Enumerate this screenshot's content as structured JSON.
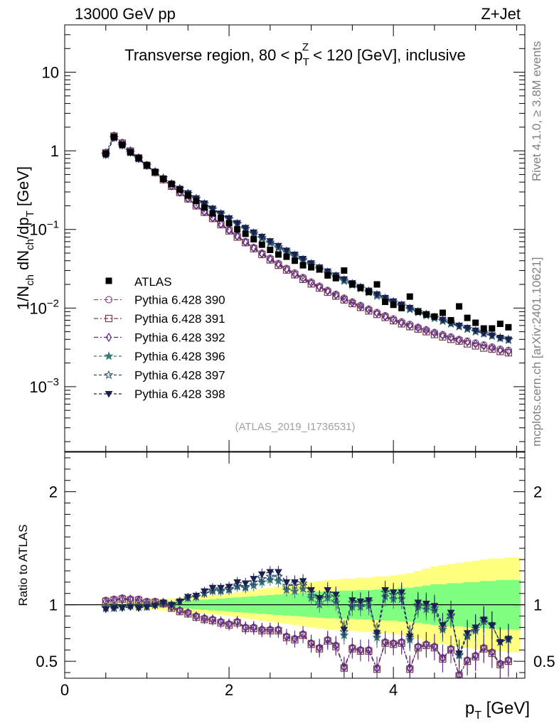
{
  "header": {
    "energy": "13000 GeV pp",
    "process": "Z+Jet"
  },
  "side_labels": {
    "rivet": "Rivet 4.1.0, ≥ 3.8M events",
    "mcplots": "mcplots.cern.ch [arXiv:2401.10621]"
  },
  "colors": {
    "atlas": "#000000",
    "band_outer": "#ffff80",
    "band_inner": "#80ff80",
    "ratio_line": "#000000"
  },
  "chart_data": [
    {
      "type": "scatter",
      "name": "main",
      "title": "Transverse region, 80 < p_T^Z < 120 [GeV], inclusive",
      "title_parts": {
        "pre": "Transverse region, 80 < p",
        "sub": "T",
        "sup": "Z",
        "post": " < 120 [GeV], inclusive"
      },
      "ylabel": "1/N_ch dN_ch/dp_T [GeV]",
      "ylabel_parts": [
        "1/N",
        "ch",
        " dN",
        "ch",
        "/dp",
        "T",
        " [GeV]"
      ],
      "yscale": "log",
      "ylim": [
        0.00015,
        40
      ],
      "xlim": [
        0,
        5.6
      ],
      "yticks": [
        {
          "value": 10,
          "mant": "10",
          "exp": ""
        },
        {
          "value": 1,
          "mant": "1",
          "exp": ""
        },
        {
          "value": 0.1,
          "mant": "10",
          "exp": "−1"
        },
        {
          "value": 0.01,
          "mant": "10",
          "exp": "−2"
        },
        {
          "value": 0.001,
          "mant": "10",
          "exp": "−3"
        }
      ],
      "watermark": "(ATLAS_2019_I1736531)",
      "x": [
        0.5,
        0.6,
        0.7,
        0.8,
        0.9,
        1.0,
        1.1,
        1.2,
        1.3,
        1.4,
        1.5,
        1.6,
        1.7,
        1.8,
        1.9,
        2.0,
        2.1,
        2.2,
        2.3,
        2.4,
        2.5,
        2.6,
        2.7,
        2.8,
        2.9,
        3.0,
        3.1,
        3.2,
        3.3,
        3.4,
        3.5,
        3.6,
        3.7,
        3.8,
        3.9,
        4.0,
        4.1,
        4.2,
        4.3,
        4.4,
        4.5,
        4.6,
        4.7,
        4.8,
        4.9,
        5.0,
        5.1,
        5.2,
        5.3,
        5.4
      ],
      "atlas": [
        0.92,
        1.5,
        1.2,
        0.96,
        0.81,
        0.66,
        0.54,
        0.44,
        0.38,
        0.32,
        0.27,
        0.23,
        0.19,
        0.16,
        0.14,
        0.12,
        0.1,
        0.088,
        0.075,
        0.064,
        0.055,
        0.048,
        0.045,
        0.04,
        0.035,
        0.033,
        0.031,
        0.026,
        0.024,
        0.03,
        0.02,
        0.018,
        0.016,
        0.02,
        0.012,
        0.011,
        0.01,
        0.014,
        0.009,
        0.0083,
        0.0078,
        0.0087,
        0.007,
        0.0105,
        0.0075,
        0.0065,
        0.0055,
        0.0055,
        0.0063,
        0.0057
      ],
      "series": [
        {
          "name": "Pythia 6.428 390",
          "label": "Pythia 6.428 390",
          "color": "#8a4f8a",
          "marker": "circle",
          "dash": "6,3,2,3",
          "values": [
            0.95,
            1.56,
            1.27,
            1.0,
            0.82,
            0.66,
            0.54,
            0.44,
            0.36,
            0.3,
            0.25,
            0.205,
            0.17,
            0.142,
            0.118,
            0.099,
            0.083,
            0.07,
            0.059,
            0.05,
            0.043,
            0.037,
            0.032,
            0.028,
            0.0245,
            0.0215,
            0.019,
            0.0168,
            0.015,
            0.0134,
            0.012,
            0.0108,
            0.0097,
            0.0088,
            0.008,
            0.0073,
            0.0067,
            0.0062,
            0.0057,
            0.0053,
            0.0049,
            0.0046,
            0.0043,
            0.004,
            0.0038,
            0.0036,
            0.0034,
            0.0032,
            0.003,
            0.0029
          ]
        },
        {
          "name": "Pythia 6.428 391",
          "label": "Pythia 6.428 391",
          "color": "#7a3a4a",
          "marker": "square",
          "dash": "6,3,2,3",
          "values": [
            0.94,
            1.54,
            1.25,
            0.99,
            0.81,
            0.65,
            0.53,
            0.43,
            0.355,
            0.295,
            0.245,
            0.2,
            0.165,
            0.138,
            0.115,
            0.096,
            0.08,
            0.068,
            0.057,
            0.048,
            0.041,
            0.035,
            0.0305,
            0.0265,
            0.0232,
            0.0203,
            0.018,
            0.0159,
            0.0142,
            0.0127,
            0.0114,
            0.0102,
            0.0092,
            0.0083,
            0.0076,
            0.0069,
            0.0063,
            0.0058,
            0.0054,
            0.005,
            0.0046,
            0.0043,
            0.004,
            0.0038,
            0.0035,
            0.0033,
            0.0031,
            0.003,
            0.0028,
            0.0027
          ]
        },
        {
          "name": "Pythia 6.428 392",
          "label": "Pythia 6.428 392",
          "color": "#5a2a8a",
          "marker": "diamond",
          "dash": "6,3,2,3",
          "values": [
            0.94,
            1.55,
            1.26,
            1.0,
            0.815,
            0.655,
            0.535,
            0.435,
            0.358,
            0.298,
            0.248,
            0.203,
            0.168,
            0.14,
            0.117,
            0.098,
            0.082,
            0.069,
            0.058,
            0.049,
            0.042,
            0.036,
            0.031,
            0.027,
            0.0238,
            0.0209,
            0.0185,
            0.0164,
            0.0146,
            0.013,
            0.0117,
            0.0105,
            0.0095,
            0.0086,
            0.0078,
            0.0071,
            0.0065,
            0.006,
            0.0056,
            0.0052,
            0.0048,
            0.0045,
            0.0042,
            0.0039,
            0.0037,
            0.0035,
            0.0033,
            0.0031,
            0.0029,
            0.0028
          ]
        },
        {
          "name": "Pythia 6.428 396",
          "label": "Pythia 6.428 396",
          "color": "#3a7a7a",
          "marker": "star",
          "dash": "4,3",
          "values": [
            0.9,
            1.47,
            1.18,
            0.95,
            0.79,
            0.65,
            0.54,
            0.45,
            0.38,
            0.33,
            0.285,
            0.245,
            0.21,
            0.18,
            0.156,
            0.135,
            0.117,
            0.101,
            0.088,
            0.077,
            0.067,
            0.058,
            0.051,
            0.045,
            0.04,
            0.035,
            0.031,
            0.0275,
            0.0245,
            0.022,
            0.0196,
            0.0176,
            0.0158,
            0.0142,
            0.0128,
            0.0116,
            0.0105,
            0.0096,
            0.0088,
            0.008,
            0.0074,
            0.0068,
            0.0063,
            0.0058,
            0.0054,
            0.005,
            0.0047,
            0.0044,
            0.0041,
            0.0039
          ]
        },
        {
          "name": "Pythia 6.428 397",
          "label": "Pythia 6.428 397",
          "color": "#2a4a6a",
          "marker": "star-open",
          "dash": "4,3",
          "values": [
            0.89,
            1.46,
            1.17,
            0.95,
            0.79,
            0.65,
            0.54,
            0.45,
            0.38,
            0.33,
            0.287,
            0.247,
            0.212,
            0.182,
            0.158,
            0.137,
            0.119,
            0.103,
            0.09,
            0.079,
            0.069,
            0.06,
            0.053,
            0.047,
            0.0415,
            0.0366,
            0.0324,
            0.0287,
            0.0256,
            0.0228,
            0.0204,
            0.0183,
            0.0164,
            0.0148,
            0.0133,
            0.012,
            0.0109,
            0.0099,
            0.009,
            0.0083,
            0.0076,
            0.007,
            0.0064,
            0.0059,
            0.0055,
            0.0051,
            0.0048,
            0.0045,
            0.0042,
            0.004
          ]
        },
        {
          "name": "Pythia 6.428 398",
          "label": "Pythia 6.428 398",
          "color": "#1a2050",
          "marker": "triangle-down",
          "dash": "4,3",
          "values": [
            0.88,
            1.45,
            1.16,
            0.94,
            0.78,
            0.645,
            0.535,
            0.448,
            0.38,
            0.33,
            0.29,
            0.25,
            0.215,
            0.185,
            0.16,
            0.139,
            0.121,
            0.105,
            0.092,
            0.081,
            0.071,
            0.062,
            0.054,
            0.048,
            0.0423,
            0.0373,
            0.033,
            0.0293,
            0.0261,
            0.0233,
            0.0208,
            0.0186,
            0.0167,
            0.015,
            0.0135,
            0.0122,
            0.0111,
            0.0101,
            0.0092,
            0.0084,
            0.0077,
            0.0071,
            0.0065,
            0.006,
            0.0056,
            0.0052,
            0.0048,
            0.0045,
            0.0042,
            0.004
          ]
        }
      ],
      "legend": {
        "placement": "center-left",
        "atlas_label": "ATLAS"
      }
    },
    {
      "type": "scatter",
      "name": "ratio",
      "ylabel": "Ratio to ATLAS",
      "xlabel": "p_T [GeV]",
      "xlabel_parts": [
        "p",
        "T",
        " [GeV]"
      ],
      "xlim": [
        0,
        5.6
      ],
      "ylim": [
        0.35,
        2.35
      ],
      "yticks": [
        0.5,
        1,
        2
      ],
      "ytick_labels": [
        "0.5",
        "1",
        "2"
      ],
      "xticks": [
        0,
        2,
        4
      ],
      "xtick_labels": [
        "0",
        "2",
        "4"
      ],
      "band_x": [
        0.45,
        0.55,
        0.65,
        0.75,
        0.85,
        0.95,
        1.05,
        1.15,
        1.25,
        1.35,
        1.45,
        1.55,
        1.65,
        1.75,
        1.85,
        1.95,
        2.05,
        2.15,
        2.25,
        2.35,
        2.45,
        2.55,
        2.65,
        2.75,
        2.85,
        2.95,
        3.05,
        3.15,
        3.25,
        3.35,
        3.45,
        3.55,
        3.65,
        3.75,
        3.85,
        3.95,
        4.05,
        4.15,
        4.25,
        4.35,
        4.45,
        4.55,
        4.65,
        4.75,
        4.85,
        4.95,
        5.05,
        5.15,
        5.25,
        5.35,
        5.45,
        5.55
      ],
      "band_outer": [
        0.02,
        0.02,
        0.025,
        0.03,
        0.035,
        0.04,
        0.045,
        0.05,
        0.055,
        0.06,
        0.07,
        0.075,
        0.08,
        0.085,
        0.09,
        0.1,
        0.11,
        0.12,
        0.13,
        0.14,
        0.15,
        0.16,
        0.17,
        0.18,
        0.19,
        0.2,
        0.21,
        0.22,
        0.22,
        0.23,
        0.23,
        0.24,
        0.24,
        0.25,
        0.25,
        0.26,
        0.27,
        0.28,
        0.3,
        0.32,
        0.34,
        0.35,
        0.36,
        0.37,
        0.38,
        0.39,
        0.4,
        0.41,
        0.41,
        0.42,
        0.42
      ],
      "band_inner": [
        0.01,
        0.01,
        0.012,
        0.015,
        0.018,
        0.02,
        0.022,
        0.025,
        0.028,
        0.03,
        0.035,
        0.04,
        0.045,
        0.05,
        0.055,
        0.06,
        0.065,
        0.07,
        0.075,
        0.08,
        0.085,
        0.09,
        0.095,
        0.1,
        0.105,
        0.11,
        0.115,
        0.12,
        0.12,
        0.125,
        0.125,
        0.13,
        0.13,
        0.135,
        0.14,
        0.14,
        0.15,
        0.15,
        0.16,
        0.17,
        0.18,
        0.18,
        0.19,
        0.19,
        0.2,
        0.2,
        0.21,
        0.21,
        0.22,
        0.22,
        0.22
      ],
      "ratio_series": [
        [
          1.04,
          1.05,
          1.06,
          1.05,
          1.05,
          1.03,
          1.03,
          1.02,
          0.98,
          0.95,
          0.93,
          0.9,
          0.88,
          0.87,
          0.85,
          0.83,
          0.85,
          0.8,
          0.8,
          0.78,
          0.78,
          0.78,
          0.72,
          0.7,
          0.74,
          0.66,
          0.62,
          0.69,
          0.64,
          0.45,
          0.62,
          0.6,
          0.6,
          0.44,
          0.67,
          0.66,
          0.67,
          0.44,
          0.63,
          0.65,
          0.63,
          0.53,
          0.61,
          0.38,
          0.51,
          0.55,
          0.62,
          0.58,
          0.48,
          0.51
        ],
        [
          1.03,
          1.04,
          1.05,
          1.04,
          1.04,
          1.02,
          1.02,
          1.01,
          0.97,
          0.94,
          0.92,
          0.89,
          0.87,
          0.86,
          0.84,
          0.82,
          0.84,
          0.79,
          0.79,
          0.77,
          0.77,
          0.77,
          0.71,
          0.69,
          0.73,
          0.65,
          0.61,
          0.68,
          0.63,
          0.44,
          0.61,
          0.59,
          0.59,
          0.43,
          0.66,
          0.65,
          0.66,
          0.43,
          0.62,
          0.64,
          0.62,
          0.52,
          0.6,
          0.37,
          0.5,
          0.54,
          0.61,
          0.57,
          0.47,
          0.5
        ],
        [
          1.03,
          1.04,
          1.05,
          1.05,
          1.04,
          1.02,
          1.02,
          1.01,
          0.98,
          0.95,
          0.93,
          0.9,
          0.88,
          0.87,
          0.85,
          0.83,
          0.85,
          0.8,
          0.8,
          0.78,
          0.78,
          0.78,
          0.72,
          0.7,
          0.74,
          0.66,
          0.62,
          0.69,
          0.64,
          0.45,
          0.62,
          0.6,
          0.6,
          0.44,
          0.67,
          0.66,
          0.67,
          0.44,
          0.63,
          0.65,
          0.63,
          0.53,
          0.61,
          0.38,
          0.51,
          0.55,
          0.62,
          0.58,
          0.48,
          0.51
        ],
        [
          0.98,
          0.98,
          0.98,
          0.99,
          0.98,
          0.99,
          1.0,
          1.02,
          1.0,
          1.03,
          1.06,
          1.07,
          1.1,
          1.12,
          1.12,
          1.13,
          1.16,
          1.15,
          1.17,
          1.2,
          1.22,
          1.21,
          1.13,
          1.12,
          1.14,
          1.06,
          1.0,
          1.06,
          1.02,
          0.73,
          0.98,
          0.98,
          0.99,
          0.71,
          1.07,
          1.05,
          1.05,
          0.69,
          0.98,
          0.96,
          0.95,
          0.78,
          0.9,
          0.55,
          0.72,
          0.77,
          0.85,
          0.82,
          0.67,
          0.69
        ],
        [
          0.97,
          0.97,
          0.98,
          0.99,
          0.98,
          0.98,
          1.0,
          1.02,
          1.0,
          1.03,
          1.06,
          1.07,
          1.1,
          1.13,
          1.13,
          1.14,
          1.17,
          1.16,
          1.2,
          1.23,
          1.25,
          1.25,
          1.17,
          1.17,
          1.19,
          1.11,
          1.05,
          1.1,
          1.07,
          0.76,
          1.02,
          1.02,
          1.03,
          0.74,
          1.11,
          1.09,
          1.09,
          0.71,
          1.0,
          0.99,
          0.97,
          0.8,
          0.91,
          0.56,
          0.73,
          0.79,
          0.87,
          0.82,
          0.67,
          0.7
        ],
        [
          0.96,
          0.97,
          0.97,
          0.98,
          0.97,
          0.98,
          0.99,
          1.02,
          1.0,
          1.03,
          1.07,
          1.08,
          1.12,
          1.15,
          1.15,
          1.16,
          1.2,
          1.19,
          1.23,
          1.27,
          1.29,
          1.29,
          1.2,
          1.2,
          1.21,
          1.13,
          1.06,
          1.13,
          1.09,
          0.78,
          1.04,
          1.03,
          1.04,
          0.75,
          1.13,
          1.11,
          1.11,
          0.72,
          1.02,
          1.01,
          0.99,
          0.82,
          0.93,
          0.57,
          0.75,
          0.8,
          0.87,
          0.82,
          0.67,
          0.7
        ]
      ]
    }
  ]
}
